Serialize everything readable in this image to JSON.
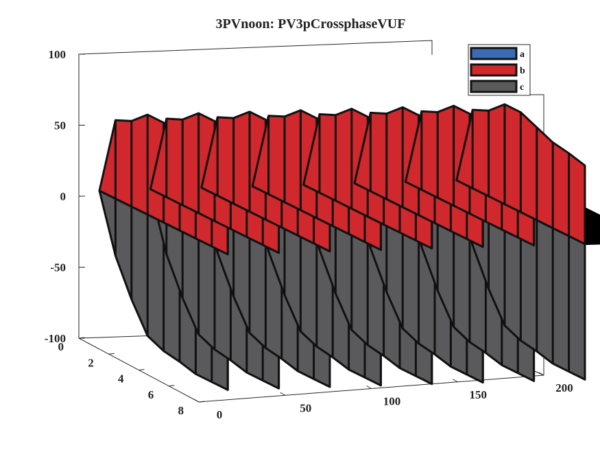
{
  "chart_data": {
    "type": "3d-surface",
    "title": "3PVnoon: PV3pCrossphaseVUF",
    "xlabel": "",
    "ylabel": "",
    "zlabel": "",
    "xlim": [
      0,
      200
    ],
    "ylim": [
      0,
      8
    ],
    "zlim": [
      -100,
      100
    ],
    "x_ticks": [
      "0",
      "50",
      "100",
      "150",
      "200"
    ],
    "y_ticks": [
      "0",
      "2",
      "4",
      "6",
      "8"
    ],
    "z_ticks": [
      "100",
      "50",
      "0",
      "-50",
      "-100"
    ],
    "grid": false,
    "legend": {
      "position": "top-right",
      "entries": [
        "a",
        "b",
        "c"
      ]
    },
    "series": [
      {
        "name": "a",
        "color": "#3c6bb5",
        "values": [
          0,
          0,
          0,
          0,
          0,
          0,
          0,
          0,
          0
        ]
      },
      {
        "name": "b",
        "color": "#d0282c",
        "values": [
          0,
          55,
          60,
          70,
          70,
          65,
          60,
          58,
          55
        ]
      },
      {
        "name": "c",
        "color": "#5a5a5c",
        "values": [
          0,
          -40,
          -65,
          -85,
          -90,
          -92,
          -95,
          -95,
          -95
        ]
      }
    ]
  }
}
